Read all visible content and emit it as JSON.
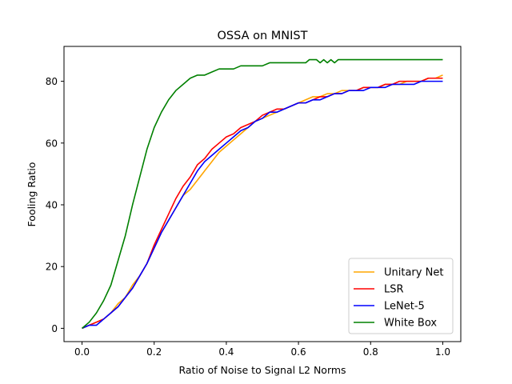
{
  "chart_data": {
    "type": "line",
    "title": "OSSA on MNIST",
    "xlabel": "Ratio of Noise to Signal L2 Norms",
    "ylabel": "Fooling Ratio",
    "xlim": [
      -0.05,
      1.05
    ],
    "ylim": [
      -4.3,
      91.3
    ],
    "xticks": [
      0.0,
      0.2,
      0.4,
      0.6,
      0.8,
      1.0
    ],
    "xtick_labels": [
      "0.0",
      "0.2",
      "0.4",
      "0.6",
      "0.8",
      "1.0"
    ],
    "yticks": [
      0,
      20,
      40,
      60,
      80
    ],
    "ytick_labels": [
      "0",
      "20",
      "40",
      "60",
      "80"
    ],
    "grid": false,
    "legend_position": "lower-right",
    "series": [
      {
        "name": "Unitary Net",
        "color": "#ffa500",
        "points": [
          [
            0.0,
            0
          ],
          [
            0.02,
            1
          ],
          [
            0.04,
            2
          ],
          [
            0.06,
            3
          ],
          [
            0.08,
            5
          ],
          [
            0.1,
            8
          ],
          [
            0.12,
            10
          ],
          [
            0.14,
            14
          ],
          [
            0.16,
            17
          ],
          [
            0.18,
            21
          ],
          [
            0.2,
            26
          ],
          [
            0.22,
            31
          ],
          [
            0.24,
            35
          ],
          [
            0.26,
            39
          ],
          [
            0.28,
            43
          ],
          [
            0.3,
            45
          ],
          [
            0.32,
            48
          ],
          [
            0.34,
            51
          ],
          [
            0.36,
            54
          ],
          [
            0.38,
            57
          ],
          [
            0.4,
            59
          ],
          [
            0.42,
            61
          ],
          [
            0.44,
            63
          ],
          [
            0.46,
            65
          ],
          [
            0.48,
            67
          ],
          [
            0.5,
            68
          ],
          [
            0.52,
            69
          ],
          [
            0.54,
            70
          ],
          [
            0.56,
            71
          ],
          [
            0.58,
            72
          ],
          [
            0.6,
            73
          ],
          [
            0.62,
            74
          ],
          [
            0.64,
            75
          ],
          [
            0.66,
            75
          ],
          [
            0.68,
            76
          ],
          [
            0.7,
            76
          ],
          [
            0.72,
            77
          ],
          [
            0.74,
            77
          ],
          [
            0.76,
            77
          ],
          [
            0.78,
            78
          ],
          [
            0.8,
            78
          ],
          [
            0.82,
            78
          ],
          [
            0.84,
            79
          ],
          [
            0.86,
            79
          ],
          [
            0.88,
            79
          ],
          [
            0.9,
            80
          ],
          [
            0.92,
            80
          ],
          [
            0.94,
            80
          ],
          [
            0.96,
            81
          ],
          [
            0.98,
            81
          ],
          [
            1.0,
            82
          ]
        ]
      },
      {
        "name": "LSR",
        "color": "#ff0000",
        "points": [
          [
            0.0,
            0
          ],
          [
            0.02,
            1
          ],
          [
            0.04,
            2
          ],
          [
            0.06,
            3
          ],
          [
            0.08,
            5
          ],
          [
            0.1,
            7
          ],
          [
            0.12,
            10
          ],
          [
            0.14,
            13
          ],
          [
            0.16,
            17
          ],
          [
            0.18,
            21
          ],
          [
            0.2,
            27
          ],
          [
            0.22,
            32
          ],
          [
            0.24,
            37
          ],
          [
            0.26,
            42
          ],
          [
            0.28,
            46
          ],
          [
            0.3,
            49
          ],
          [
            0.32,
            53
          ],
          [
            0.34,
            55
          ],
          [
            0.36,
            58
          ],
          [
            0.38,
            60
          ],
          [
            0.4,
            62
          ],
          [
            0.42,
            63
          ],
          [
            0.44,
            65
          ],
          [
            0.46,
            66
          ],
          [
            0.48,
            67
          ],
          [
            0.5,
            69
          ],
          [
            0.52,
            70
          ],
          [
            0.54,
            71
          ],
          [
            0.56,
            71
          ],
          [
            0.58,
            72
          ],
          [
            0.6,
            73
          ],
          [
            0.62,
            73
          ],
          [
            0.64,
            74
          ],
          [
            0.66,
            75
          ],
          [
            0.68,
            75
          ],
          [
            0.7,
            76
          ],
          [
            0.72,
            76
          ],
          [
            0.74,
            77
          ],
          [
            0.76,
            77
          ],
          [
            0.78,
            78
          ],
          [
            0.8,
            78
          ],
          [
            0.82,
            78
          ],
          [
            0.84,
            79
          ],
          [
            0.86,
            79
          ],
          [
            0.88,
            80
          ],
          [
            0.9,
            80
          ],
          [
            0.92,
            80
          ],
          [
            0.94,
            80
          ],
          [
            0.96,
            81
          ],
          [
            0.98,
            81
          ],
          [
            1.0,
            81
          ]
        ]
      },
      {
        "name": "LeNet-5",
        "color": "#0000ff",
        "points": [
          [
            0.0,
            0
          ],
          [
            0.02,
            1
          ],
          [
            0.04,
            1
          ],
          [
            0.06,
            3
          ],
          [
            0.08,
            5
          ],
          [
            0.1,
            7
          ],
          [
            0.12,
            10
          ],
          [
            0.14,
            13
          ],
          [
            0.16,
            17
          ],
          [
            0.18,
            21
          ],
          [
            0.2,
            26
          ],
          [
            0.22,
            31
          ],
          [
            0.24,
            35
          ],
          [
            0.26,
            39
          ],
          [
            0.28,
            43
          ],
          [
            0.3,
            47
          ],
          [
            0.32,
            51
          ],
          [
            0.34,
            54
          ],
          [
            0.36,
            56
          ],
          [
            0.38,
            58
          ],
          [
            0.4,
            60
          ],
          [
            0.42,
            62
          ],
          [
            0.44,
            64
          ],
          [
            0.46,
            65
          ],
          [
            0.48,
            67
          ],
          [
            0.5,
            68
          ],
          [
            0.52,
            70
          ],
          [
            0.54,
            70
          ],
          [
            0.56,
            71
          ],
          [
            0.58,
            72
          ],
          [
            0.6,
            73
          ],
          [
            0.62,
            73
          ],
          [
            0.64,
            74
          ],
          [
            0.66,
            74
          ],
          [
            0.68,
            75
          ],
          [
            0.7,
            76
          ],
          [
            0.72,
            76
          ],
          [
            0.74,
            77
          ],
          [
            0.76,
            77
          ],
          [
            0.78,
            77
          ],
          [
            0.8,
            78
          ],
          [
            0.82,
            78
          ],
          [
            0.84,
            78
          ],
          [
            0.86,
            79
          ],
          [
            0.88,
            79
          ],
          [
            0.9,
            79
          ],
          [
            0.92,
            79
          ],
          [
            0.94,
            80
          ],
          [
            0.96,
            80
          ],
          [
            0.98,
            80
          ],
          [
            1.0,
            80
          ]
        ]
      },
      {
        "name": "White Box",
        "color": "#008000",
        "points": [
          [
            0.0,
            0
          ],
          [
            0.02,
            2
          ],
          [
            0.04,
            5
          ],
          [
            0.06,
            9
          ],
          [
            0.08,
            14
          ],
          [
            0.1,
            22
          ],
          [
            0.12,
            30
          ],
          [
            0.14,
            40
          ],
          [
            0.16,
            49
          ],
          [
            0.18,
            58
          ],
          [
            0.2,
            65
          ],
          [
            0.22,
            70
          ],
          [
            0.24,
            74
          ],
          [
            0.26,
            77
          ],
          [
            0.28,
            79
          ],
          [
            0.3,
            81
          ],
          [
            0.32,
            82
          ],
          [
            0.34,
            82
          ],
          [
            0.36,
            83
          ],
          [
            0.38,
            84
          ],
          [
            0.4,
            84
          ],
          [
            0.42,
            84
          ],
          [
            0.44,
            85
          ],
          [
            0.46,
            85
          ],
          [
            0.48,
            85
          ],
          [
            0.5,
            85
          ],
          [
            0.52,
            86
          ],
          [
            0.54,
            86
          ],
          [
            0.56,
            86
          ],
          [
            0.58,
            86
          ],
          [
            0.6,
            86
          ],
          [
            0.62,
            86
          ],
          [
            0.63,
            87
          ],
          [
            0.65,
            87
          ],
          [
            0.66,
            86
          ],
          [
            0.67,
            87
          ],
          [
            0.68,
            86
          ],
          [
            0.69,
            87
          ],
          [
            0.7,
            86
          ],
          [
            0.71,
            87
          ],
          [
            0.74,
            87
          ],
          [
            0.78,
            87
          ],
          [
            0.82,
            87
          ],
          [
            0.86,
            87
          ],
          [
            0.9,
            87
          ],
          [
            0.94,
            87
          ],
          [
            0.98,
            87
          ],
          [
            1.0,
            87
          ]
        ]
      }
    ]
  }
}
